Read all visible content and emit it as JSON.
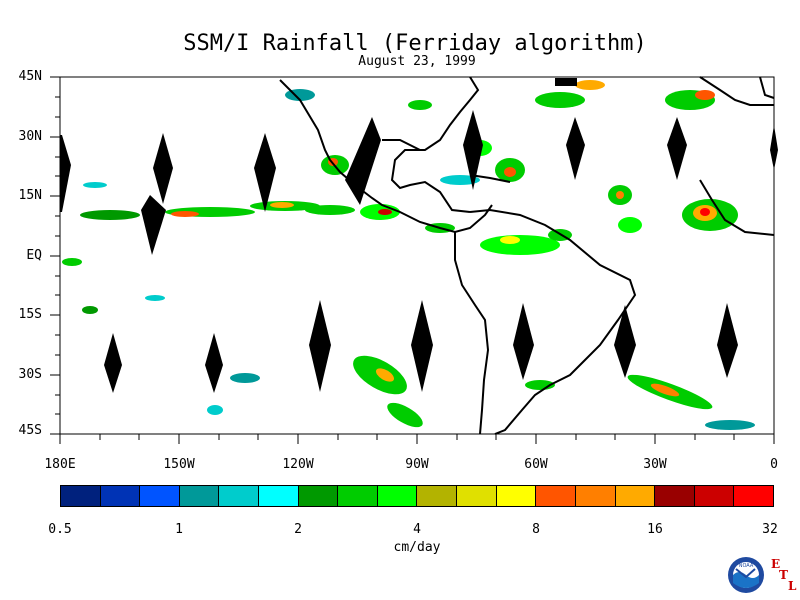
{
  "title": "SSM/I Rainfall (Ferriday algorithm)",
  "subtitle": "August 23, 1999",
  "map": {
    "lat_labels": [
      "45N",
      "30N",
      "15N",
      "EQ",
      "15S",
      "30S",
      "45S"
    ],
    "lon_labels": [
      "180E",
      "150W",
      "120W",
      "90W",
      "60W",
      "30W",
      "0"
    ],
    "lon_range": [
      -180,
      0
    ],
    "lat_range": [
      -45,
      45
    ],
    "projection": "cylindrical",
    "missing_data_swath_color": "#000000",
    "land_outline_color": "#000000"
  },
  "colorbar": {
    "unit": "cm/day",
    "tick_labels": [
      "0.5",
      "1",
      "2",
      "4",
      "8",
      "16",
      "32"
    ],
    "colors": [
      "#00217d",
      "#0033b5",
      "#0054ff",
      "#009999",
      "#00cccc",
      "#00ffff",
      "#009900",
      "#00cc00",
      "#00ff00",
      "#b3b300",
      "#e0e000",
      "#ffff00",
      "#ff5500",
      "#ff7f00",
      "#ffaa00",
      "#990000",
      "#cc0000",
      "#ff0000"
    ]
  },
  "logos": {
    "noaa_text": "NOAA",
    "etl_letters": [
      "E",
      "T",
      "L"
    ]
  }
}
